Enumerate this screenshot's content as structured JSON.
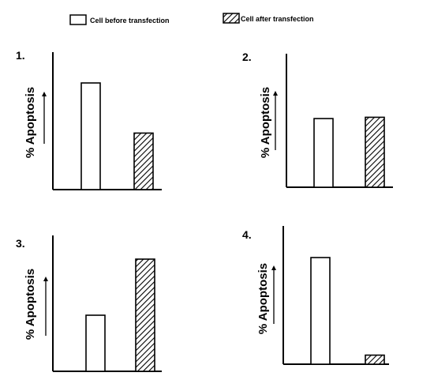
{
  "legend": {
    "before_label": "Cell before transfection",
    "after_label": "Cell after transfection"
  },
  "colors": {
    "axis": "#000000",
    "before_fill": "#ffffff",
    "after_hatch": "#000000"
  },
  "chart_data": [
    {
      "type": "bar",
      "panel_label": "1.",
      "ylabel": "% Apoptosis",
      "categories": [
        "Cell before transfection",
        "Cell after transfection"
      ],
      "values": [
        100,
        53
      ],
      "ylim": [
        0,
        100
      ],
      "grid": false
    },
    {
      "type": "bar",
      "panel_label": "2.",
      "ylabel": "% Apoptosis",
      "categories": [
        "Cell before transfection",
        "Cell after transfection"
      ],
      "values": [
        53,
        54
      ],
      "ylim": [
        0,
        100
      ],
      "grid": false
    },
    {
      "type": "bar",
      "panel_label": "3.",
      "ylabel": "% Apoptosis",
      "categories": [
        "Cell before transfection",
        "Cell after transfection"
      ],
      "values": [
        50,
        100
      ],
      "ylim": [
        0,
        100
      ],
      "grid": false
    },
    {
      "type": "bar",
      "panel_label": "4.",
      "ylabel": "% Apoptosis",
      "categories": [
        "Cell before transfection",
        "Cell after transfection"
      ],
      "values": [
        100,
        8.5
      ],
      "ylim": [
        0,
        100
      ],
      "grid": false
    }
  ]
}
